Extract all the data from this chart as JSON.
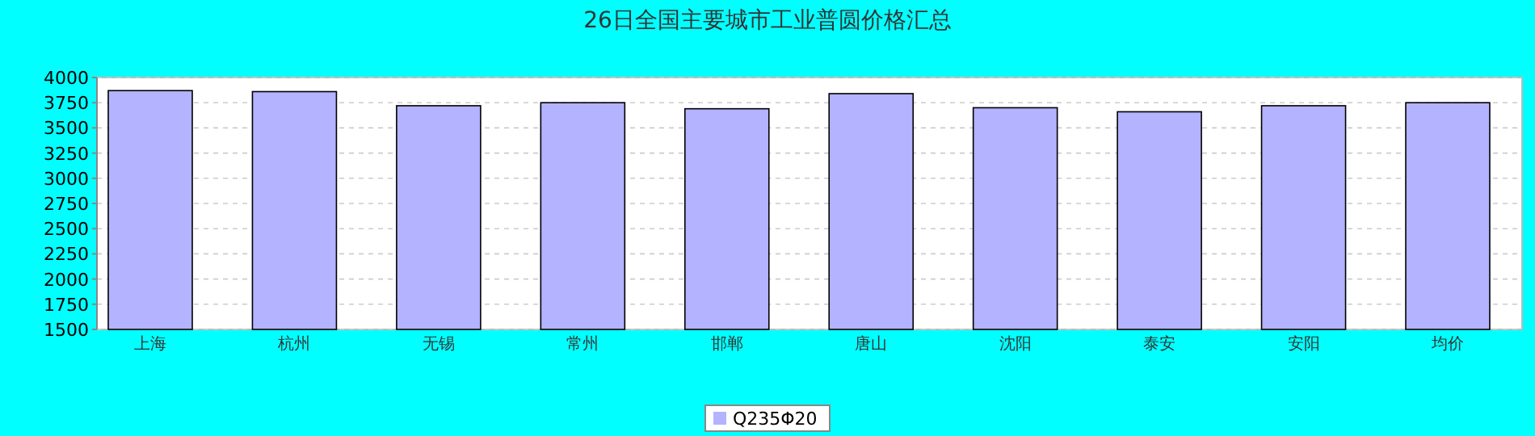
{
  "chart_data": {
    "type": "bar",
    "title": "26日全国主要城市工业普圆价格汇总",
    "categories": [
      "上海",
      "杭州",
      "无锡",
      "常州",
      "邯郸",
      "唐山",
      "沈阳",
      "泰安",
      "安阳",
      "均价"
    ],
    "series": [
      {
        "name": "Q235Φ20",
        "color": "#b3b3ff",
        "values": [
          3870,
          3860,
          3720,
          3750,
          3690,
          3840,
          3700,
          3660,
          3720,
          3750
        ]
      }
    ],
    "ylim": [
      1500,
      4000
    ],
    "yticks": [
      1500,
      1750,
      2000,
      2250,
      2500,
      2750,
      3000,
      3250,
      3500,
      3750,
      4000
    ],
    "grid": "y",
    "legend": "bottom"
  }
}
